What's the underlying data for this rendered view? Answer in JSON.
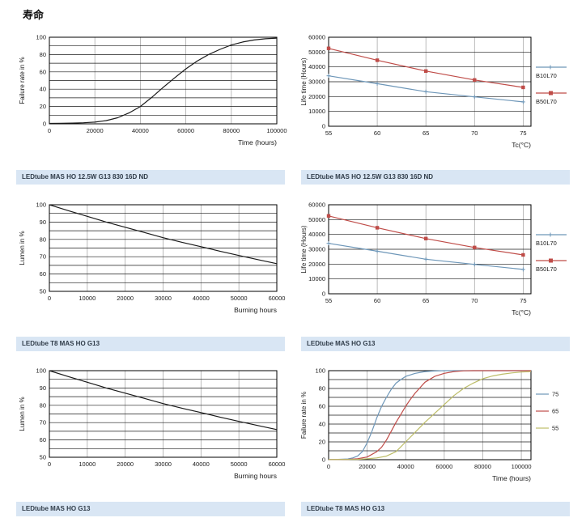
{
  "page": {
    "title": "寿命"
  },
  "colors": {
    "caption_bg": "#d9e6f4",
    "caption_text": "#303c49",
    "hgrid": "#1a1a1a",
    "vgrid": "#aaaaaa",
    "frame": "#000000",
    "black_line": "#1a1a1a",
    "blue": "#6d96b8",
    "red": "#bf4c48",
    "olive": "#bdbd68"
  },
  "chart_data": [
    {
      "id": "failure-rate-ledtube-830",
      "type": "line",
      "layout": "left",
      "caption": "LEDtube MAS HO 12.5W G13 830 16D ND",
      "xlabel": "Time (hours)",
      "ylabel": "Failure rate in %",
      "xlim": [
        0,
        100000
      ],
      "ylim": [
        0,
        100
      ],
      "xticks": [
        0,
        20000,
        40000,
        60000,
        80000,
        100000
      ],
      "yticks": [
        0,
        20,
        40,
        60,
        80,
        100
      ],
      "xgrid_values": [
        20000,
        40000,
        60000,
        80000
      ],
      "ygrid_values": [
        10,
        20,
        30,
        40,
        50,
        60,
        70,
        80,
        90
      ],
      "legend": null,
      "series": [
        {
          "name": "failure rate",
          "color": "#1a1a1a",
          "marker": "none",
          "width": 1.2,
          "points": [
            [
              0,
              0.5
            ],
            [
              5000,
              0.6
            ],
            [
              10000,
              0.8
            ],
            [
              15000,
              1.2
            ],
            [
              20000,
              2
            ],
            [
              25000,
              3.7
            ],
            [
              30000,
              7
            ],
            [
              35000,
              12.5
            ],
            [
              40000,
              20
            ],
            [
              45000,
              30.5
            ],
            [
              50000,
              42
            ],
            [
              55000,
              53
            ],
            [
              60000,
              63.5
            ],
            [
              65000,
              72.5
            ],
            [
              70000,
              80
            ],
            [
              75000,
              86
            ],
            [
              80000,
              91
            ],
            [
              85000,
              94.5
            ],
            [
              90000,
              96.8
            ],
            [
              95000,
              98.2
            ],
            [
              100000,
              99
            ]
          ]
        }
      ]
    },
    {
      "id": "lifetime-ledtube-830",
      "type": "line",
      "layout": "right",
      "caption": "LEDtube MAS HO 12.5W G13 830 16D ND",
      "xlabel": "Tc(°C)",
      "ylabel": "Life time (Hours)",
      "xlim": [
        55,
        75.8
      ],
      "ylim": [
        0,
        60000
      ],
      "xticks": [
        55,
        60,
        65,
        70,
        75
      ],
      "yticks": [
        0,
        10000,
        20000,
        30000,
        40000,
        50000,
        60000
      ],
      "xgrid_values": [
        60,
        65,
        70,
        75
      ],
      "ygrid_values": [
        10000,
        20000,
        30000,
        40000,
        50000
      ],
      "legend": {
        "position": "right-stacked",
        "entries": [
          {
            "label": "B10L70",
            "color": "#6d96b8",
            "marker": "plus"
          },
          {
            "label": "B50L70",
            "color": "#bf4c48",
            "marker": "square"
          }
        ]
      },
      "series": [
        {
          "name": "B50L70",
          "color": "#bf4c48",
          "marker": "square",
          "width": 1.2,
          "points": [
            [
              55,
              52500
            ],
            [
              60,
              44500
            ],
            [
              65,
              37200
            ],
            [
              70,
              31200
            ],
            [
              75,
              26200
            ]
          ]
        },
        {
          "name": "B10L70",
          "color": "#6d96b8",
          "marker": "plus",
          "width": 1.2,
          "points": [
            [
              55,
              34000
            ],
            [
              60,
              28700
            ],
            [
              65,
              23300
            ],
            [
              70,
              19800
            ],
            [
              75,
              16400
            ]
          ]
        }
      ]
    },
    {
      "id": "lumen-ledtube-t8",
      "type": "line",
      "layout": "left",
      "caption": "LEDtube T8 MAS HO G13",
      "xlabel": "Burning hours",
      "ylabel": "Lumen in %",
      "xlim": [
        0,
        60000
      ],
      "ylim": [
        50,
        100
      ],
      "xticks": [
        0,
        10000,
        20000,
        30000,
        40000,
        50000,
        60000
      ],
      "yticks": [
        50,
        60,
        70,
        80,
        90,
        100
      ],
      "xgrid_values": [
        10000,
        20000,
        30000,
        40000,
        50000
      ],
      "ygrid_values": [
        55,
        60,
        65,
        70,
        75,
        80,
        85,
        90,
        95
      ],
      "legend": null,
      "series": [
        {
          "name": "lumen maintenance",
          "color": "#1a1a1a",
          "marker": "none",
          "width": 1.2,
          "points": [
            [
              0,
              100
            ],
            [
              5000,
              96.6
            ],
            [
              10000,
              93.3
            ],
            [
              15000,
              90
            ],
            [
              20000,
              87
            ],
            [
              25000,
              84
            ],
            [
              30000,
              81
            ],
            [
              35000,
              78.3
            ],
            [
              40000,
              75.8
            ],
            [
              45000,
              73.2
            ],
            [
              50000,
              70.7
            ],
            [
              55000,
              68.3
            ],
            [
              60000,
              66
            ]
          ]
        }
      ]
    },
    {
      "id": "lifetime-ledtube-ho",
      "type": "line",
      "layout": "right",
      "caption": "LEDtube MAS HO G13",
      "xlabel": "Tc(°C)",
      "ylabel": "Life time (Hours)",
      "xlim": [
        55,
        75.8
      ],
      "ylim": [
        0,
        60000
      ],
      "xticks": [
        55,
        60,
        65,
        70,
        75
      ],
      "yticks": [
        0,
        10000,
        20000,
        30000,
        40000,
        50000,
        60000
      ],
      "xgrid_values": [
        60,
        65,
        70,
        75
      ],
      "ygrid_values": [
        10000,
        20000,
        30000,
        40000,
        50000
      ],
      "legend": {
        "position": "right-stacked",
        "entries": [
          {
            "label": "B10L70",
            "color": "#6d96b8",
            "marker": "plus"
          },
          {
            "label": "B50L70",
            "color": "#bf4c48",
            "marker": "square"
          }
        ]
      },
      "series": [
        {
          "name": "B50L70",
          "color": "#bf4c48",
          "marker": "square",
          "width": 1.2,
          "points": [
            [
              55,
              52500
            ],
            [
              60,
              44500
            ],
            [
              65,
              37200
            ],
            [
              70,
              31200
            ],
            [
              75,
              26200
            ]
          ]
        },
        {
          "name": "B10L70",
          "color": "#6d96b8",
          "marker": "plus",
          "width": 1.2,
          "points": [
            [
              55,
              34000
            ],
            [
              60,
              28700
            ],
            [
              65,
              23300
            ],
            [
              70,
              19800
            ],
            [
              75,
              16400
            ]
          ]
        }
      ]
    },
    {
      "id": "lumen-ledtube-ho",
      "type": "line",
      "layout": "left",
      "caption": "LEDtube MAS HO G13",
      "xlabel": "Burning hours",
      "ylabel": "Lumen in %",
      "xlim": [
        0,
        60000
      ],
      "ylim": [
        50,
        100
      ],
      "xticks": [
        0,
        10000,
        20000,
        30000,
        40000,
        50000,
        60000
      ],
      "yticks": [
        50,
        60,
        70,
        80,
        90,
        100
      ],
      "xgrid_values": [
        10000,
        20000,
        30000,
        40000,
        50000
      ],
      "ygrid_values": [
        55,
        60,
        65,
        70,
        75,
        80,
        85,
        90,
        95
      ],
      "legend": null,
      "series": [
        {
          "name": "lumen maintenance",
          "color": "#1a1a1a",
          "marker": "none",
          "width": 1.2,
          "points": [
            [
              0,
              100
            ],
            [
              5000,
              96.6
            ],
            [
              10000,
              93.3
            ],
            [
              15000,
              90
            ],
            [
              20000,
              87
            ],
            [
              25000,
              84
            ],
            [
              30000,
              81
            ],
            [
              35000,
              78.3
            ],
            [
              40000,
              75.8
            ],
            [
              45000,
              73.2
            ],
            [
              50000,
              70.7
            ],
            [
              55000,
              68.3
            ],
            [
              60000,
              66
            ]
          ]
        }
      ]
    },
    {
      "id": "failure-rate-ledtube-t8-by-tc",
      "type": "line",
      "layout": "right",
      "caption": "LEDtube T8 MAS HO G13",
      "xlabel": "Time (hours)",
      "ylabel": "Failure rate in %",
      "xlim": [
        0,
        105000
      ],
      "ylim": [
        0,
        100
      ],
      "xticks": [
        0,
        20000,
        40000,
        60000,
        80000,
        100000
      ],
      "yticks": [
        0,
        20,
        40,
        60,
        80,
        100
      ],
      "xgrid_values": [
        20000,
        40000,
        60000,
        80000,
        100000
      ],
      "ygrid_values": [
        10,
        20,
        30,
        40,
        50,
        60,
        70,
        80,
        90
      ],
      "legend": {
        "position": "right-list",
        "entries": [
          {
            "label": "75",
            "color": "#6d96b8",
            "marker": "line"
          },
          {
            "label": "65",
            "color": "#bf4c48",
            "marker": "line"
          },
          {
            "label": "55",
            "color": "#bdbd68",
            "marker": "line"
          }
        ]
      },
      "series": [
        {
          "name": "75",
          "color": "#6d96b8",
          "marker": "none",
          "width": 1.2,
          "points": [
            [
              0,
              0.3
            ],
            [
              5000,
              0.4
            ],
            [
              10000,
              0.8
            ],
            [
              12500,
              2
            ],
            [
              15000,
              4
            ],
            [
              17500,
              9
            ],
            [
              20000,
              19
            ],
            [
              22500,
              32
            ],
            [
              25000,
              47
            ],
            [
              27500,
              60
            ],
            [
              30000,
              70
            ],
            [
              32500,
              79
            ],
            [
              35000,
              86
            ],
            [
              37500,
              90
            ],
            [
              40000,
              93.5
            ],
            [
              45000,
              97
            ],
            [
              50000,
              99
            ],
            [
              55000,
              99.6
            ],
            [
              60000,
              100
            ],
            [
              105000,
              100
            ]
          ]
        },
        {
          "name": "65",
          "color": "#bf4c48",
          "marker": "none",
          "width": 1.2,
          "points": [
            [
              0,
              0.2
            ],
            [
              10000,
              0.4
            ],
            [
              15000,
              1
            ],
            [
              20000,
              3
            ],
            [
              25000,
              9
            ],
            [
              27500,
              14
            ],
            [
              30000,
              22
            ],
            [
              32500,
              32
            ],
            [
              35000,
              42
            ],
            [
              37500,
              51
            ],
            [
              40000,
              60
            ],
            [
              42500,
              68
            ],
            [
              45000,
              75
            ],
            [
              47500,
              81
            ],
            [
              50000,
              87
            ],
            [
              55000,
              93.5
            ],
            [
              60000,
              97
            ],
            [
              65000,
              99
            ],
            [
              70000,
              99.8
            ],
            [
              75000,
              100
            ],
            [
              105000,
              100
            ]
          ]
        },
        {
          "name": "55",
          "color": "#bdbd68",
          "marker": "none",
          "width": 1.2,
          "points": [
            [
              0,
              0.2
            ],
            [
              15000,
              0.4
            ],
            [
              20000,
              1
            ],
            [
              25000,
              2
            ],
            [
              30000,
              4
            ],
            [
              35000,
              9
            ],
            [
              40000,
              20
            ],
            [
              45000,
              31
            ],
            [
              50000,
              42
            ],
            [
              55000,
              52
            ],
            [
              60000,
              62
            ],
            [
              65000,
              72
            ],
            [
              70000,
              80
            ],
            [
              75000,
              86
            ],
            [
              80000,
              91
            ],
            [
              85000,
              94
            ],
            [
              90000,
              96
            ],
            [
              95000,
              97.5
            ],
            [
              100000,
              98.5
            ],
            [
              105000,
              99
            ]
          ]
        }
      ]
    }
  ]
}
